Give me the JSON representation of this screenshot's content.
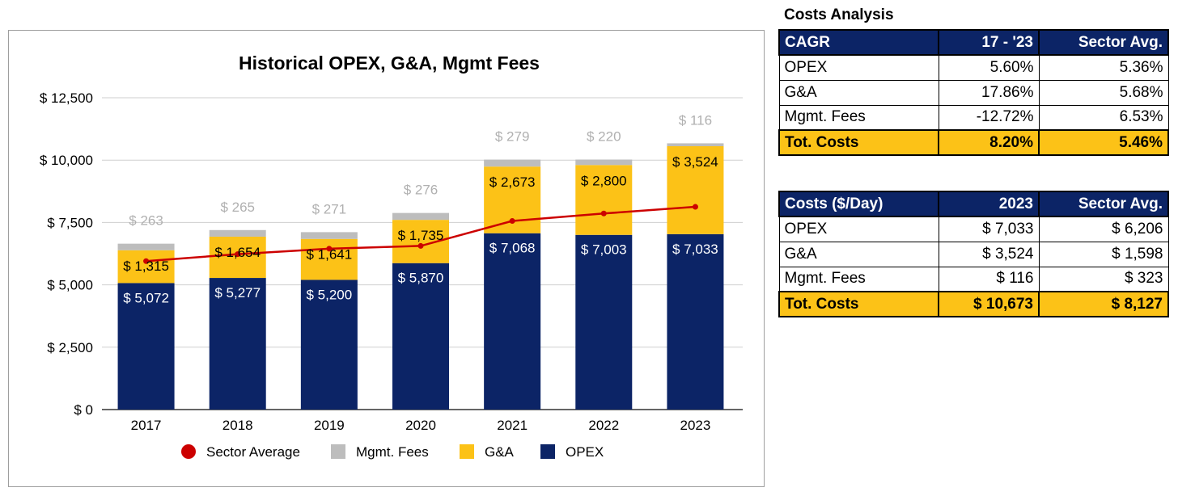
{
  "chart_data": {
    "type": "bar",
    "stacked": true,
    "title": "Historical OPEX, G&A, Mgmt Fees",
    "categories": [
      "2017",
      "2018",
      "2019",
      "2020",
      "2021",
      "2022",
      "2023"
    ],
    "y_tick_labels": [
      "$ 0",
      "$ 2,500",
      "$ 5,000",
      "$ 7,500",
      "$ 10,000",
      "$ 12,500"
    ],
    "y_ticks": [
      0,
      2500,
      5000,
      7500,
      10000,
      12500
    ],
    "ylim": [
      0,
      12500
    ],
    "grid": true,
    "legend_position": "bottom",
    "series": [
      {
        "name": "OPEX",
        "color": "#0c2466",
        "label_color": "#ffffff",
        "values": [
          5072,
          5277,
          5200,
          5870,
          7068,
          7003,
          7033
        ],
        "labels": [
          "$ 5,072",
          "$ 5,277",
          "$ 5,200",
          "$ 5,870",
          "$ 7,068",
          "$ 7,003",
          "$ 7,033"
        ]
      },
      {
        "name": "G&A",
        "color": "#fcc217",
        "label_color": "#000000",
        "values": [
          1315,
          1654,
          1641,
          1735,
          2673,
          2800,
          3524
        ],
        "labels": [
          "$ 1,315",
          "$ 1,654",
          "$ 1,641",
          "$ 1,735",
          "$ 2,673",
          "$ 2,800",
          "$ 3,524"
        ]
      },
      {
        "name": "Mgmt. Fees",
        "color": "#bdbdbd",
        "label_color": "#b0b0b0",
        "values": [
          263,
          265,
          271,
          276,
          279,
          220,
          116
        ],
        "labels": [
          "$ 263",
          "$ 265",
          "$ 271",
          "$ 276",
          "$ 279",
          "$ 220",
          "$ 116"
        ]
      }
    ],
    "line_series": {
      "name": "Sector Average",
      "color": "#cc0000",
      "values": [
        5950,
        6230,
        6450,
        6560,
        7560,
        7860,
        8127
      ]
    },
    "legend": [
      "Sector Average",
      "Mgmt. Fees",
      "G&A",
      "OPEX"
    ]
  },
  "cagr_table": {
    "title": "Costs Analysis",
    "headers": [
      "CAGR",
      "17 - '23",
      "Sector Avg."
    ],
    "rows": [
      [
        "OPEX",
        "5.60%",
        "5.36%"
      ],
      [
        "G&A",
        "17.86%",
        "5.68%"
      ],
      [
        "Mgmt. Fees",
        "-12.72%",
        "6.53%"
      ]
    ],
    "total": [
      "Tot. Costs",
      "8.20%",
      "5.46%"
    ]
  },
  "day_table": {
    "headers": [
      "Costs ($/Day)",
      "2023",
      "Sector Avg."
    ],
    "rows": [
      [
        "OPEX",
        "$ 7,033",
        "$ 6,206"
      ],
      [
        "G&A",
        "$ 3,524",
        "$ 1,598"
      ],
      [
        "Mgmt. Fees",
        "$ 116",
        "$ 323"
      ]
    ],
    "total": [
      "Tot. Costs",
      "$ 10,673",
      "$ 8,127"
    ]
  }
}
